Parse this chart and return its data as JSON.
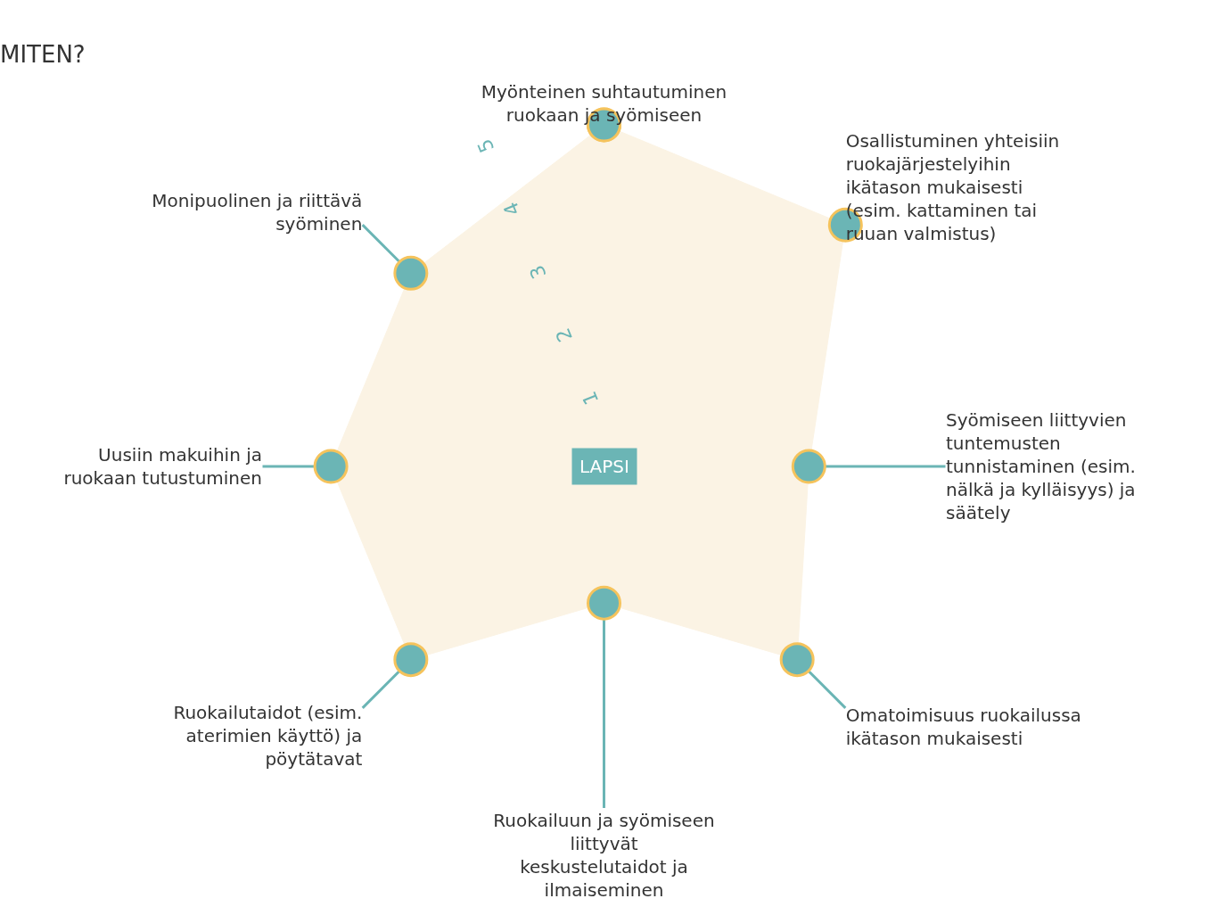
{
  "chart_data": {
    "type": "radar",
    "title": "MITEN?",
    "categories": [
      "Myönteinen suhtautuminen ruokaan ja syömiseen",
      "Osallistuminen yhteisiin ruokajärjestelyihin ikätason mukaisesti (esim. kattaminen tai ruuan valmistus)",
      "Syömiseen liittyvien tuntemusten tunnistaminen (esim. nälkä ja kylläisyys) ja säätely",
      "Omatoimisuus ruokailussa ikätason mukaisesti",
      "Ruokailuun ja syömiseen liittyvät keskustelutaidot ja ilmaiseminen",
      "Ruokailutaidot (esim. aterimien käyttö) ja pöytätavat",
      "Uusiin makuihin ja ruokaan tutustuminen",
      "Monipuolinen ja riittävä syöminen"
    ],
    "series": [
      {
        "color": "#fbf3e4",
        "values": [
          5,
          5,
          3,
          4,
          2,
          4,
          4,
          4
        ]
      }
    ],
    "ylim": [
      0,
      5
    ],
    "yticks": [
      1,
      2,
      3,
      4,
      5
    ],
    "marker": "circle",
    "grid": "x",
    "annotations": [
      "LAPSI"
    ]
  }
}
